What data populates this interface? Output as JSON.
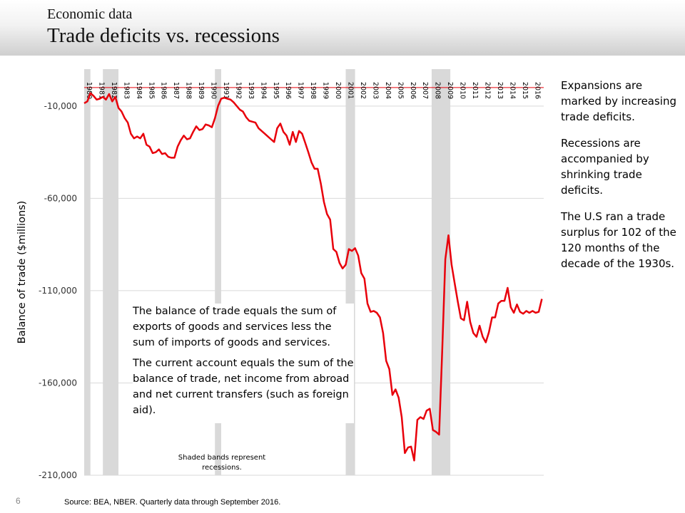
{
  "header": {
    "kicker": "Economic data",
    "title": "Trade deficits vs. recessions"
  },
  "sidebar": {
    "paragraphs": [
      "Expansions are marked by increasing trade deficits.",
      "Recessions are accompanied by shrinking trade deficits.",
      "The U.S ran a trade surplus for 102 of the 120 months of the decade of the 1930s."
    ]
  },
  "note_box": {
    "paragraphs": [
      "The balance of trade equals the sum of exports of goods and services less the sum of imports of goods and services.",
      "The current account equals the sum of the balance of trade, net income from abroad and net current transfers (such as foreign aid)."
    ]
  },
  "shade_note": "Shaded bands represent recessions.",
  "page_number": "6",
  "source": "Source: BEA, NBER. Quarterly data through September 2016.",
  "colors": {
    "line": "#e8000b",
    "recession": "#d9d9d9",
    "grid": "#d9d9d9"
  },
  "chart_data": {
    "type": "line",
    "ylabel": "Balance of trade ($millions)",
    "ylim": [
      -210000,
      10000
    ],
    "yticks": [
      -10000,
      -60000,
      -110000,
      -160000,
      -210000
    ],
    "ytick_labels": [
      "-10,000",
      "-60,000",
      "-110,000",
      "-160,000",
      "-210,000"
    ],
    "xlim": [
      1980,
      2016.9
    ],
    "year_labels": [
      "1980",
      "1981",
      "1982",
      "1983",
      "1984",
      "1985",
      "1986",
      "1987",
      "1988",
      "1989",
      "1990",
      "1991",
      "1992",
      "1993",
      "1994",
      "1995",
      "1996",
      "1997",
      "1998",
      "1999",
      "2000",
      "2001",
      "2002",
      "2003",
      "2004",
      "2005",
      "2006",
      "2007",
      "2008",
      "2009",
      "2010",
      "2011",
      "2012",
      "2013",
      "2014",
      "2015",
      "2016"
    ],
    "grid": true,
    "recessions": [
      [
        1980.0,
        1980.5
      ],
      [
        1981.5,
        1982.75
      ],
      [
        1990.5,
        1991.0
      ],
      [
        2001.0,
        2001.75
      ],
      [
        2007.9,
        2009.4
      ]
    ],
    "series": [
      {
        "values": [
          [
            1980.0,
            -8500
          ],
          [
            1980.25,
            -7500
          ],
          [
            1980.5,
            -3000
          ],
          [
            1980.75,
            -4500
          ],
          [
            1981.0,
            -6500
          ],
          [
            1981.25,
            -6000
          ],
          [
            1981.5,
            -5000
          ],
          [
            1981.75,
            -6500
          ],
          [
            1982.0,
            -3500
          ],
          [
            1982.25,
            -7500
          ],
          [
            1982.5,
            -5000
          ],
          [
            1982.75,
            -11000
          ],
          [
            1983.0,
            -13000
          ],
          [
            1983.25,
            -16500
          ],
          [
            1983.5,
            -19000
          ],
          [
            1983.75,
            -25000
          ],
          [
            1984.0,
            -27500
          ],
          [
            1984.25,
            -26500
          ],
          [
            1984.5,
            -27500
          ],
          [
            1984.75,
            -25000
          ],
          [
            1985.0,
            -31000
          ],
          [
            1985.25,
            -32000
          ],
          [
            1985.5,
            -35500
          ],
          [
            1985.75,
            -35000
          ],
          [
            1986.0,
            -33500
          ],
          [
            1986.25,
            -36000
          ],
          [
            1986.5,
            -35500
          ],
          [
            1986.75,
            -37500
          ],
          [
            1987.0,
            -38000
          ],
          [
            1987.25,
            -38000
          ],
          [
            1987.5,
            -32000
          ],
          [
            1987.75,
            -28500
          ],
          [
            1988.0,
            -26000
          ],
          [
            1988.25,
            -28000
          ],
          [
            1988.5,
            -27500
          ],
          [
            1988.75,
            -24000
          ],
          [
            1989.0,
            -21000
          ],
          [
            1989.25,
            -23000
          ],
          [
            1989.5,
            -22500
          ],
          [
            1989.75,
            -20000
          ],
          [
            1990.0,
            -20500
          ],
          [
            1990.25,
            -21500
          ],
          [
            1990.5,
            -16500
          ],
          [
            1990.75,
            -10000
          ],
          [
            1991.0,
            -6000
          ],
          [
            1991.25,
            -5500
          ],
          [
            1991.5,
            -6000
          ],
          [
            1991.75,
            -6500
          ],
          [
            1992.0,
            -8000
          ],
          [
            1992.25,
            -10000
          ],
          [
            1992.5,
            -12000
          ],
          [
            1992.75,
            -13000
          ],
          [
            1993.0,
            -16000
          ],
          [
            1993.25,
            -18000
          ],
          [
            1993.5,
            -18500
          ],
          [
            1993.75,
            -19000
          ],
          [
            1994.0,
            -22000
          ],
          [
            1994.25,
            -23500
          ],
          [
            1994.5,
            -25000
          ],
          [
            1994.75,
            -26500
          ],
          [
            1995.0,
            -28000
          ],
          [
            1995.25,
            -29500
          ],
          [
            1995.5,
            -22000
          ],
          [
            1995.75,
            -19500
          ],
          [
            1996.0,
            -24000
          ],
          [
            1996.25,
            -26000
          ],
          [
            1996.5,
            -31000
          ],
          [
            1996.75,
            -24000
          ],
          [
            1997.0,
            -29500
          ],
          [
            1997.25,
            -23500
          ],
          [
            1997.5,
            -25000
          ],
          [
            1997.75,
            -30000
          ],
          [
            1998.0,
            -35000
          ],
          [
            1998.25,
            -40500
          ],
          [
            1998.5,
            -44000
          ],
          [
            1998.75,
            -44000
          ],
          [
            1999.0,
            -52000
          ],
          [
            1999.25,
            -62000
          ],
          [
            1999.5,
            -68500
          ],
          [
            1999.75,
            -71500
          ],
          [
            2000.0,
            -87500
          ],
          [
            2000.25,
            -89000
          ],
          [
            2000.5,
            -95000
          ],
          [
            2000.75,
            -98000
          ],
          [
            2001.0,
            -96000
          ],
          [
            2001.25,
            -87500
          ],
          [
            2001.5,
            -88500
          ],
          [
            2001.75,
            -87000
          ],
          [
            2002.0,
            -91000
          ],
          [
            2002.25,
            -100500
          ],
          [
            2002.5,
            -103500
          ],
          [
            2002.75,
            -117000
          ],
          [
            2003.0,
            -121500
          ],
          [
            2003.25,
            -121000
          ],
          [
            2003.5,
            -122000
          ],
          [
            2003.75,
            -124500
          ],
          [
            2004.0,
            -133000
          ],
          [
            2004.25,
            -148000
          ],
          [
            2004.5,
            -152500
          ],
          [
            2004.75,
            -166500
          ],
          [
            2005.0,
            -163500
          ],
          [
            2005.25,
            -168000
          ],
          [
            2005.5,
            -178500
          ],
          [
            2005.75,
            -198000
          ],
          [
            2006.0,
            -195000
          ],
          [
            2006.25,
            -194500
          ],
          [
            2006.5,
            -202000
          ],
          [
            2006.75,
            -180000
          ],
          [
            2007.0,
            -178500
          ],
          [
            2007.25,
            -179500
          ],
          [
            2007.5,
            -175000
          ],
          [
            2007.75,
            -174000
          ],
          [
            2008.0,
            -185500
          ],
          [
            2008.25,
            -186500
          ],
          [
            2008.5,
            -188000
          ],
          [
            2008.75,
            -142000
          ],
          [
            2009.0,
            -93000
          ],
          [
            2009.25,
            -80000
          ],
          [
            2009.5,
            -96000
          ],
          [
            2009.75,
            -106000
          ],
          [
            2010.0,
            -116000
          ],
          [
            2010.25,
            -125000
          ],
          [
            2010.5,
            -126000
          ],
          [
            2010.75,
            -116000
          ],
          [
            2011.0,
            -127000
          ],
          [
            2011.25,
            -133000
          ],
          [
            2011.5,
            -135000
          ],
          [
            2011.75,
            -129000
          ],
          [
            2012.0,
            -135000
          ],
          [
            2012.25,
            -138000
          ],
          [
            2012.5,
            -132500
          ],
          [
            2012.75,
            -124500
          ],
          [
            2013.0,
            -124500
          ],
          [
            2013.25,
            -117000
          ],
          [
            2013.5,
            -115500
          ],
          [
            2013.75,
            -115500
          ],
          [
            2014.0,
            -108500
          ],
          [
            2014.25,
            -119000
          ],
          [
            2014.5,
            -122000
          ],
          [
            2014.75,
            -117500
          ],
          [
            2015.0,
            -121500
          ],
          [
            2015.25,
            -122500
          ],
          [
            2015.5,
            -121000
          ],
          [
            2015.75,
            -122000
          ],
          [
            2016.0,
            -121000
          ],
          [
            2016.25,
            -122000
          ],
          [
            2016.5,
            -121500
          ],
          [
            2016.75,
            -114500
          ]
        ]
      }
    ]
  }
}
